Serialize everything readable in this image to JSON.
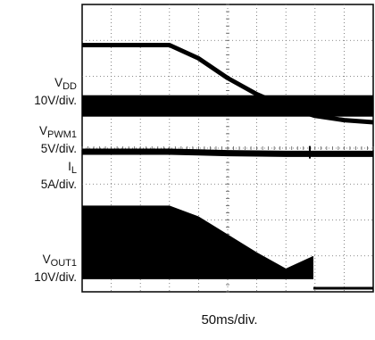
{
  "chart_data": {
    "type": "line",
    "title": "",
    "grid": true,
    "x_scale": "50ms/div.",
    "divisions": {
      "x": 10,
      "y": 8
    },
    "x": [
      0,
      1,
      2,
      3,
      4,
      5,
      6,
      7,
      8,
      9,
      10
    ],
    "series": [
      {
        "name": "VDD",
        "label_main": "V",
        "label_sub": "DD",
        "scale": "10V/div.",
        "values_div": [
          6.87,
          6.87,
          6.87,
          6.87,
          6.5,
          5.95,
          5.5,
          5.15,
          4.9,
          4.78,
          4.72
        ]
      },
      {
        "name": "VPWM1",
        "label_main": "V",
        "label_sub": "PWM1",
        "scale": "5V/div.",
        "values_div": [
          5.2,
          5.2,
          5.2,
          5.2,
          5.2,
          5.2,
          5.2,
          5.2,
          5.2,
          5.2,
          5.2
        ]
      },
      {
        "name": "IL",
        "label_main": "I",
        "label_sub": "L",
        "scale": "5A/div.",
        "values_div": [
          3.9,
          3.9,
          3.9,
          3.9,
          3.88,
          3.86,
          3.85,
          3.84,
          3.84,
          3.84,
          3.84
        ]
      },
      {
        "name": "VOUT1",
        "label_main": "V",
        "label_sub": "OUT1",
        "scale": "10V/div.",
        "values_div": [
          2.4,
          2.4,
          2.4,
          2.4,
          2.1,
          1.6,
          1.1,
          0.65,
          0.1,
          0.1,
          0.1
        ]
      }
    ],
    "xlabel": "50ms/div."
  }
}
